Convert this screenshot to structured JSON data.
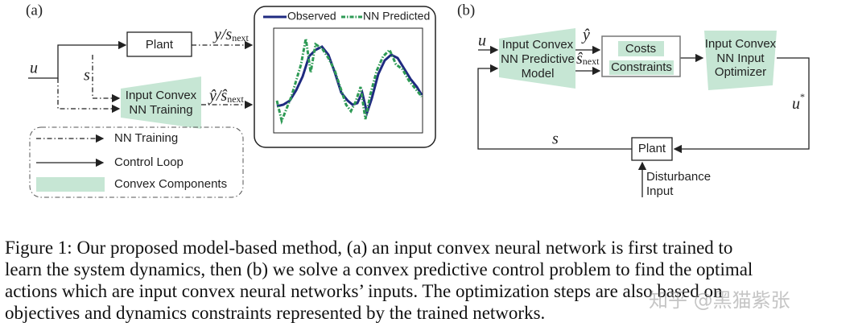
{
  "panel_a": {
    "label": "(a)",
    "input": "u",
    "state": "s",
    "plant": "Plant",
    "plant_output": {
      "main": "y/s",
      "sub": "next"
    },
    "training_block": [
      "Input Convex",
      "NN Training"
    ],
    "training_output": {
      "main": "ŷ/ŝ",
      "sub": "next"
    },
    "legend": [
      "NN Training",
      "Control Loop",
      "Convex Components"
    ],
    "inset_legend": [
      "Observed",
      "NN Predicted"
    ]
  },
  "panel_b": {
    "label": "(b)",
    "input": "u",
    "model_block": [
      "Input Convex",
      "NN Predictive",
      "Model"
    ],
    "model_output_y": "ŷ",
    "model_output_s": {
      "main": "ŝ",
      "sub": "next"
    },
    "costs": "Costs",
    "constraints": "Constraints",
    "optimizer_block": [
      "Input Convex",
      "NN Input",
      "Optimizer"
    ],
    "optimal_action": {
      "main": "u",
      "sup": "*"
    },
    "state": "s",
    "plant": "Plant",
    "disturbance": [
      "Disturbance",
      "Input"
    ]
  },
  "caption": [
    "Figure 1: Our proposed model-based method, (a) an input convex neural network is first trained to",
    "learn the system dynamics, then (b) we solve a convex predictive control problem to find the optimal",
    "actions which are input convex neural networks’ inputs. The optimization steps are also based on",
    "objectives and dynamics constraints represented by the trained networks."
  ],
  "watermark": "知乎 @黑猫紫张"
}
